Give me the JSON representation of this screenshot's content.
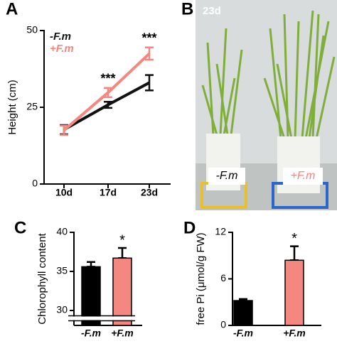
{
  "chart_data": [
    {
      "type": "line",
      "panel": "A",
      "y_label": "Height (cm)",
      "categories": [
        "10d",
        "17d",
        "23d"
      ],
      "series": [
        {
          "name": "-F.m",
          "color": "#111111",
          "values": [
            17.7,
            25.8,
            33
          ],
          "errors": [
            1.5,
            1,
            2.5
          ]
        },
        {
          "name": "+F.m",
          "color": "#f4877f",
          "values": [
            17.5,
            29.8,
            42.5
          ],
          "errors": [
            1.5,
            1.5,
            2
          ]
        }
      ],
      "annotations": [
        null,
        "***",
        "***"
      ],
      "ylim": [
        0,
        50
      ],
      "yticks": [
        0,
        25,
        50
      ],
      "legend": "top-left"
    },
    {
      "type": "image",
      "panel": "B",
      "title": "23d",
      "labels": [
        "-F.m",
        "+F.m"
      ]
    },
    {
      "type": "bar",
      "panel": "C",
      "y_label": "Chlorophyll content",
      "categories": [
        "-F.m",
        "+F.m"
      ],
      "values": [
        35.6,
        36.7
      ],
      "errors": [
        0.6,
        1.3
      ],
      "colors": [
        "#000000",
        "#f4877f"
      ],
      "annotations": [
        null,
        "*"
      ],
      "ylim": [
        30,
        40
      ],
      "yticks": [
        30,
        35,
        40
      ],
      "axis_break": true
    },
    {
      "type": "bar",
      "panel": "D",
      "y_label": "free Pi (μmol/g FW)",
      "categories": [
        "-F.m",
        "+F.m"
      ],
      "values": [
        3.2,
        8.4
      ],
      "errors": [
        0.2,
        1.8
      ],
      "colors": [
        "#000000",
        "#f4877f"
      ],
      "annotations": [
        null,
        "*"
      ],
      "ylim": [
        0,
        12
      ],
      "yticks": [
        0,
        6,
        12
      ],
      "axis_break": false
    }
  ]
}
